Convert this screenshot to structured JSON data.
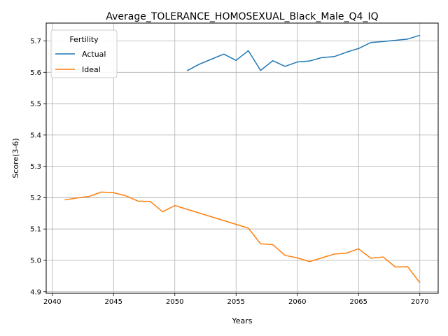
{
  "chart_data": {
    "type": "line",
    "title": "Average_TOLERANCE_HOMOSEXUAL_Black_Male_Q4_IQ",
    "xlabel": "Years",
    "ylabel": "Score(3-6)",
    "xlim": [
      2039.5,
      2071.5
    ],
    "ylim": [
      4.895,
      5.757
    ],
    "xticks": [
      2040,
      2045,
      2050,
      2055,
      2060,
      2065,
      2070
    ],
    "yticks": [
      4.9,
      5.0,
      5.1,
      5.2,
      5.3,
      5.4,
      5.5,
      5.6,
      5.7
    ],
    "ytick_labels": [
      "4.9",
      "5.0",
      "5.1",
      "5.2",
      "5.3",
      "5.4",
      "5.5",
      "5.6",
      "5.7"
    ],
    "grid": true,
    "legend": {
      "title": "Fertility",
      "position": "upper-left"
    },
    "series": [
      {
        "name": "Actual",
        "color": "#1f77b4",
        "x": [
          2051,
          2052,
          2053,
          2054,
          2055,
          2056,
          2057,
          2058,
          2059,
          2060,
          2061,
          2062,
          2063,
          2064,
          2065,
          2066,
          2067,
          2068,
          2069,
          2070
        ],
        "values": [
          5.605,
          5.626,
          5.642,
          5.658,
          5.638,
          5.669,
          5.606,
          5.637,
          5.619,
          5.633,
          5.636,
          5.647,
          5.65,
          5.664,
          5.676,
          5.695,
          5.698,
          5.702,
          5.706,
          5.718
        ]
      },
      {
        "name": "Ideal",
        "color": "#ff7f0e",
        "x": [
          2041,
          2042,
          2043,
          2044,
          2045,
          2046,
          2047,
          2048,
          2049,
          2050,
          2051,
          2052,
          2053,
          2054,
          2055,
          2056,
          2057,
          2058,
          2059,
          2060,
          2061,
          2062,
          2063,
          2064,
          2065,
          2066,
          2067,
          2068,
          2069,
          2070
        ],
        "values": [
          5.193,
          5.199,
          5.204,
          5.218,
          5.216,
          5.206,
          5.189,
          5.188,
          5.155,
          5.175,
          5.163,
          5.151,
          5.139,
          5.127,
          5.115,
          5.103,
          5.053,
          5.05,
          5.016,
          5.008,
          4.996,
          5.008,
          5.02,
          5.023,
          5.037,
          5.007,
          5.011,
          4.979,
          4.98,
          4.929
        ]
      }
    ]
  }
}
